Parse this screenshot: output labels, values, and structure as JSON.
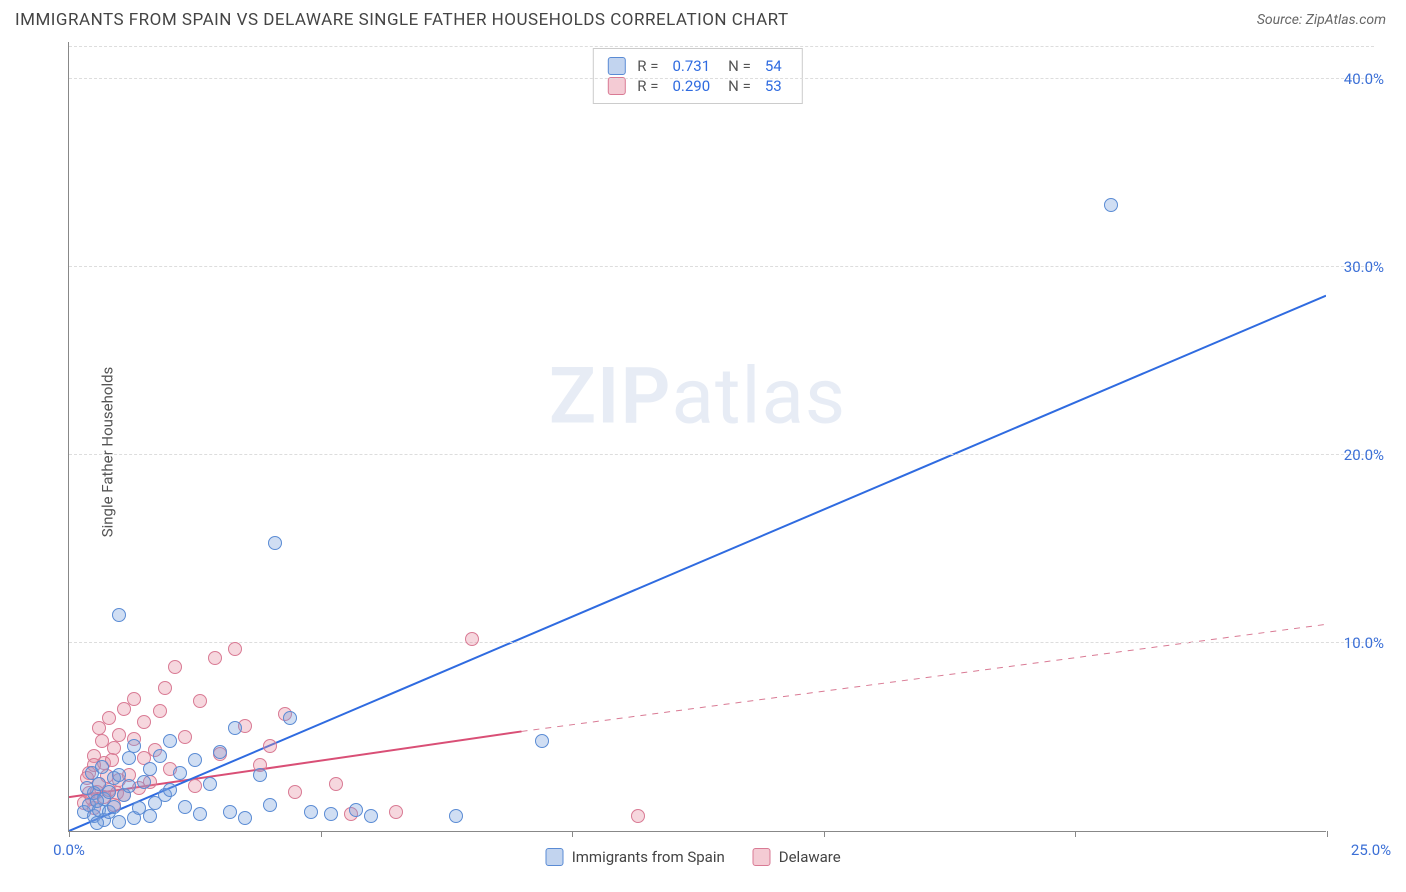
{
  "header": {
    "title": "IMMIGRANTS FROM SPAIN VS DELAWARE SINGLE FATHER HOUSEHOLDS CORRELATION CHART",
    "source": "Source: ZipAtlas.com"
  },
  "axes": {
    "y_label": "Single Father Households",
    "x_min": 0,
    "x_max": 25,
    "y_min": 0,
    "y_max": 42,
    "y_ticks": [
      10,
      20,
      30,
      40
    ],
    "y_tick_labels": [
      "10.0%",
      "20.0%",
      "30.0%",
      "40.0%"
    ],
    "x_ticks": [
      0,
      5,
      10,
      15,
      20,
      25
    ],
    "x_axis_labels": {
      "left": "0.0%",
      "right": "25.0%"
    }
  },
  "watermark": {
    "bold": "ZIP",
    "light": "atlas"
  },
  "legend": {
    "rows": [
      {
        "color": "blue",
        "r": "0.731",
        "n": "54"
      },
      {
        "color": "pink",
        "r": "0.290",
        "n": "53"
      }
    ],
    "r_label": "R =",
    "n_label": "N ="
  },
  "bottom_legend": [
    {
      "color": "blue",
      "label": "Immigrants from Spain"
    },
    {
      "color": "pink",
      "label": "Delaware"
    }
  ],
  "trend_lines": {
    "blue": {
      "x1": 0,
      "y1": 0,
      "x2": 25,
      "y2": 28.5,
      "color": "#2f6be0",
      "width": 2,
      "dash": "none"
    },
    "pink_solid": {
      "x1": 0,
      "y1": 1.8,
      "x2": 9,
      "y2": 5.3,
      "color": "#d94f76",
      "width": 2,
      "dash": "none"
    },
    "pink_dash": {
      "x1": 9,
      "y1": 5.3,
      "x2": 25,
      "y2": 11,
      "color": "#d97a94",
      "width": 1,
      "dash": "6,6"
    }
  },
  "points_blue": [
    [
      0.3,
      1.0
    ],
    [
      0.4,
      1.4
    ],
    [
      0.5,
      0.8
    ],
    [
      0.5,
      2.0
    ],
    [
      0.6,
      1.1
    ],
    [
      0.6,
      2.5
    ],
    [
      0.7,
      0.6
    ],
    [
      0.7,
      1.7
    ],
    [
      0.8,
      2.1
    ],
    [
      0.8,
      1.0
    ],
    [
      0.9,
      2.8
    ],
    [
      0.9,
      1.3
    ],
    [
      1.0,
      0.5
    ],
    [
      1.0,
      3.0
    ],
    [
      1.1,
      1.9
    ],
    [
      1.2,
      2.4
    ],
    [
      1.2,
      3.9
    ],
    [
      1.3,
      0.7
    ],
    [
      1.3,
      4.5
    ],
    [
      1.4,
      1.2
    ],
    [
      1.5,
      2.6
    ],
    [
      1.6,
      0.8
    ],
    [
      1.6,
      3.3
    ],
    [
      1.7,
      1.5
    ],
    [
      1.8,
      4.0
    ],
    [
      1.9,
      1.9
    ],
    [
      2.0,
      2.2
    ],
    [
      2.0,
      4.8
    ],
    [
      2.2,
      3.1
    ],
    [
      2.3,
      1.3
    ],
    [
      2.5,
      3.8
    ],
    [
      2.6,
      0.9
    ],
    [
      2.8,
      2.5
    ],
    [
      3.0,
      4.2
    ],
    [
      3.2,
      1.0
    ],
    [
      3.3,
      5.5
    ],
    [
      3.5,
      0.7
    ],
    [
      3.8,
      3.0
    ],
    [
      4.0,
      1.4
    ],
    [
      4.4,
      6.0
    ],
    [
      4.8,
      1.0
    ],
    [
      5.2,
      0.9
    ],
    [
      5.7,
      1.1
    ],
    [
      6.0,
      0.8
    ],
    [
      7.7,
      0.8
    ],
    [
      9.4,
      4.8
    ],
    [
      1.0,
      11.5
    ],
    [
      4.1,
      15.3
    ],
    [
      20.7,
      33.3
    ],
    [
      0.35,
      2.3
    ],
    [
      0.45,
      3.1
    ],
    [
      0.55,
      1.6
    ],
    [
      0.55,
      0.4
    ],
    [
      0.65,
      3.4
    ]
  ],
  "points_pink": [
    [
      0.3,
      1.5
    ],
    [
      0.4,
      2.0
    ],
    [
      0.4,
      3.1
    ],
    [
      0.5,
      1.2
    ],
    [
      0.5,
      4.0
    ],
    [
      0.6,
      2.5
    ],
    [
      0.6,
      5.5
    ],
    [
      0.7,
      1.8
    ],
    [
      0.7,
      3.6
    ],
    [
      0.8,
      2.2
    ],
    [
      0.8,
      6.0
    ],
    [
      0.9,
      1.4
    ],
    [
      0.9,
      4.4
    ],
    [
      1.0,
      2.7
    ],
    [
      1.0,
      5.1
    ],
    [
      1.1,
      6.5
    ],
    [
      1.1,
      1.9
    ],
    [
      1.2,
      3.0
    ],
    [
      1.3,
      4.9
    ],
    [
      1.3,
      7.0
    ],
    [
      1.4,
      2.3
    ],
    [
      1.5,
      3.9
    ],
    [
      1.5,
      5.8
    ],
    [
      1.6,
      2.6
    ],
    [
      1.7,
      4.3
    ],
    [
      1.8,
      6.4
    ],
    [
      1.9,
      7.6
    ],
    [
      2.0,
      3.3
    ],
    [
      2.1,
      8.7
    ],
    [
      2.3,
      5.0
    ],
    [
      2.5,
      2.4
    ],
    [
      2.6,
      6.9
    ],
    [
      2.9,
      9.2
    ],
    [
      3.0,
      4.1
    ],
    [
      3.3,
      9.7
    ],
    [
      3.5,
      5.6
    ],
    [
      3.8,
      3.5
    ],
    [
      4.0,
      4.5
    ],
    [
      4.3,
      6.2
    ],
    [
      4.5,
      2.1
    ],
    [
      5.3,
      2.5
    ],
    [
      5.6,
      0.9
    ],
    [
      6.5,
      1.0
    ],
    [
      8.0,
      10.2
    ],
    [
      11.3,
      0.8
    ],
    [
      0.35,
      2.8
    ],
    [
      0.45,
      1.7
    ],
    [
      0.5,
      3.5
    ],
    [
      0.55,
      2.1
    ],
    [
      0.65,
      4.8
    ],
    [
      0.75,
      2.9
    ],
    [
      0.85,
      3.8
    ],
    [
      0.95,
      2.0
    ]
  ],
  "colors": {
    "blue_stroke": "#5a8bd4",
    "blue_fill": "rgba(120,160,220,0.35)",
    "pink_stroke": "#d97a94",
    "pink_fill": "rgba(230,140,160,0.35)",
    "axis": "#888",
    "grid": "#ddd",
    "tick_label": "#3b6fd6",
    "text": "#444"
  }
}
